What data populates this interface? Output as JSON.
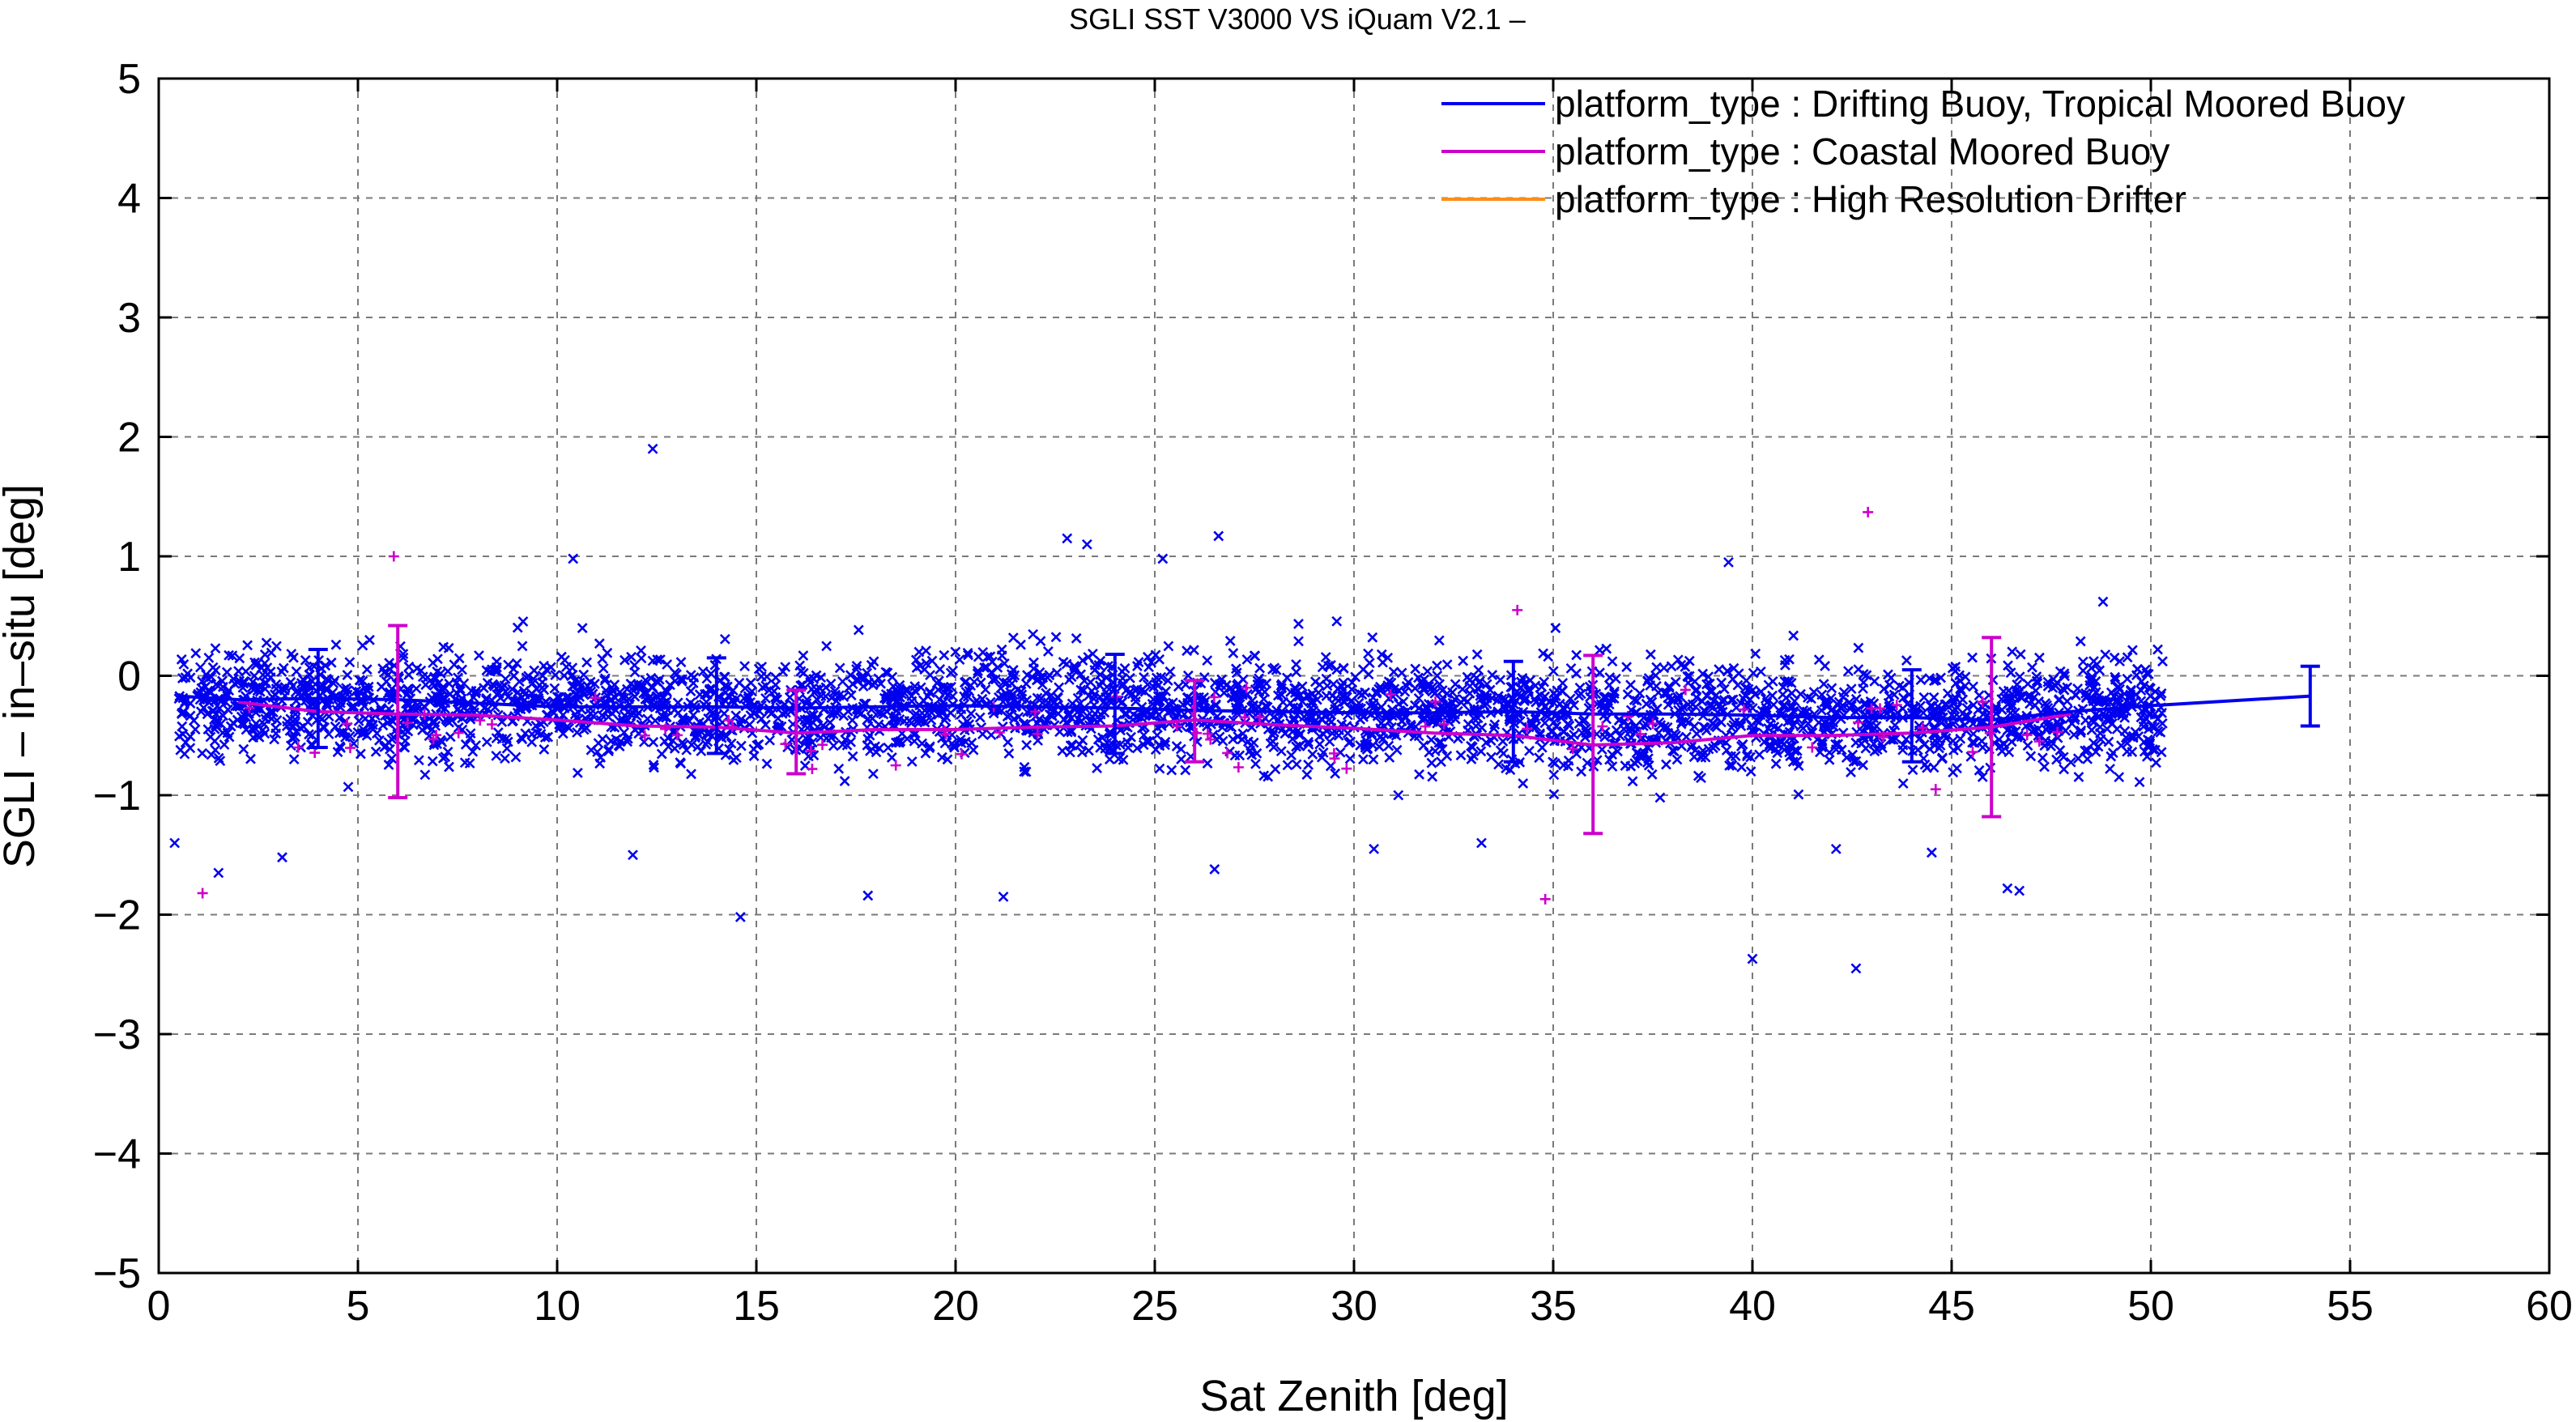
{
  "chart_data": {
    "type": "scatter",
    "title": "SGLI SST V3000 VS iQuam V2.1  –",
    "xlabel": "Sat Zenith [deg]",
    "ylabel": "SGLI – in–situ [deg]",
    "xlim": [
      0,
      60
    ],
    "ylim": [
      -5,
      5
    ],
    "xticks": [
      0,
      5,
      10,
      15,
      20,
      25,
      30,
      35,
      40,
      45,
      50,
      55,
      60
    ],
    "yticks": [
      -5,
      -4,
      -3,
      -2,
      -1,
      0,
      1,
      2,
      3,
      4,
      5
    ],
    "ytick_labels": [
      "−5",
      "−4",
      "−3",
      "−2",
      "−1",
      "0",
      "1",
      "2",
      "3",
      "4",
      "5"
    ],
    "grid": true,
    "legend_position": "top-right",
    "colors": {
      "drifting": "#0000ee",
      "coastal": "#cc00cc",
      "hr": "#ff8c1a"
    },
    "series": [
      {
        "name": "platform_type : Drifting Buoy, Tropical Moored Buoy",
        "color": "#0000ee",
        "scatter_center": [
          [
            0.5,
            -0.2
          ],
          [
            2.5,
            -0.2
          ],
          [
            5,
            -0.25
          ],
          [
            7.5,
            -0.25
          ],
          [
            10,
            -0.25
          ],
          [
            12.5,
            -0.28
          ],
          [
            15,
            -0.28
          ],
          [
            17.5,
            -0.27
          ],
          [
            20,
            -0.25
          ],
          [
            22.5,
            -0.26
          ],
          [
            25,
            -0.27
          ],
          [
            27.5,
            -0.3
          ],
          [
            30,
            -0.3
          ],
          [
            32.5,
            -0.32
          ],
          [
            35,
            -0.32
          ],
          [
            37.5,
            -0.34
          ],
          [
            40,
            -0.35
          ],
          [
            42.5,
            -0.36
          ],
          [
            45,
            -0.36
          ],
          [
            47.5,
            -0.3
          ],
          [
            50.3,
            -0.25
          ]
        ],
        "scatter_spread": 0.38,
        "outliers": [
          [
            12.4,
            1.9
          ],
          [
            14.6,
            -2.02
          ],
          [
            40,
            -2.37
          ],
          [
            42.6,
            -2.45
          ],
          [
            26.6,
            1.17
          ],
          [
            22.8,
            1.15
          ],
          [
            23.3,
            1.1
          ],
          [
            17.8,
            -1.84
          ],
          [
            21.2,
            -1.85
          ],
          [
            3.1,
            -1.52
          ],
          [
            1.5,
            -1.65
          ],
          [
            0.4,
            -1.4
          ],
          [
            11.9,
            -1.5
          ],
          [
            46.4,
            -1.78
          ],
          [
            46.7,
            -1.8
          ],
          [
            48.8,
            0.62
          ],
          [
            39.4,
            0.95
          ],
          [
            10.4,
            0.98
          ],
          [
            25.2,
            0.98
          ],
          [
            26.5,
            -1.62
          ],
          [
            42.1,
            -1.45
          ],
          [
            30.5,
            -1.45
          ],
          [
            33.2,
            -1.4
          ],
          [
            44.5,
            -1.48
          ]
        ],
        "mean_line": {
          "x": [
            0.5,
            2,
            4,
            6,
            8,
            10,
            12,
            14,
            16,
            18,
            20,
            22,
            24,
            26,
            28,
            30,
            32,
            34,
            36,
            38,
            40,
            42,
            44,
            46,
            48,
            50,
            54
          ],
          "y": [
            -0.17,
            -0.2,
            -0.19,
            -0.2,
            -0.23,
            -0.26,
            -0.26,
            -0.26,
            -0.27,
            -0.26,
            -0.25,
            -0.26,
            -0.27,
            -0.29,
            -0.3,
            -0.31,
            -0.31,
            -0.3,
            -0.32,
            -0.32,
            -0.33,
            -0.35,
            -0.35,
            -0.37,
            -0.3,
            -0.25,
            -0.17
          ]
        },
        "error_bars": [
          {
            "x": 4,
            "mean": -0.2,
            "low": -0.6,
            "high": 0.22
          },
          {
            "x": 14,
            "mean": -0.25,
            "low": -0.65,
            "high": 0.15
          },
          {
            "x": 24,
            "mean": -0.27,
            "low": -0.65,
            "high": 0.18
          },
          {
            "x": 34,
            "mean": -0.3,
            "low": -0.72,
            "high": 0.12
          },
          {
            "x": 44,
            "mean": -0.36,
            "low": -0.72,
            "high": 0.05
          },
          {
            "x": 54,
            "mean": -0.17,
            "low": -0.42,
            "high": 0.08
          }
        ]
      },
      {
        "name": "platform_type : Coastal Moored Buoy",
        "color": "#cc00cc",
        "points": [
          [
            1.1,
            -1.82
          ],
          [
            5.9,
            1.0
          ],
          [
            34.8,
            -1.87
          ],
          [
            42.9,
            1.37
          ],
          [
            34.1,
            0.55
          ],
          [
            16.4,
            -0.78
          ],
          [
            18.5,
            -0.75
          ],
          [
            44.6,
            -0.95
          ],
          [
            29.5,
            -0.65
          ],
          [
            3.5,
            -0.6
          ],
          [
            47.2,
            -0.55
          ],
          [
            41.5,
            -0.6
          ],
          [
            37.5,
            -0.4
          ],
          [
            27.3,
            -0.1
          ],
          [
            12.2,
            -0.5
          ],
          [
            22.0,
            -0.3
          ]
        ],
        "mean_line": {
          "x": [
            2,
            4,
            6,
            8,
            10,
            12,
            14,
            16,
            18,
            20,
            22,
            24,
            26,
            28,
            30,
            32,
            34,
            36,
            38,
            40,
            42,
            44,
            46,
            48
          ],
          "y": [
            -0.22,
            -0.3,
            -0.32,
            -0.33,
            -0.37,
            -0.42,
            -0.43,
            -0.48,
            -0.45,
            -0.45,
            -0.43,
            -0.42,
            -0.37,
            -0.41,
            -0.44,
            -0.48,
            -0.5,
            -0.58,
            -0.56,
            -0.5,
            -0.5,
            -0.48,
            -0.43,
            -0.32
          ]
        },
        "error_bars": [
          {
            "x": 6,
            "mean": -0.3,
            "low": -1.02,
            "high": 0.42
          },
          {
            "x": 16,
            "mean": -0.47,
            "low": -0.82,
            "high": -0.12
          },
          {
            "x": 26,
            "mean": -0.38,
            "low": -0.72,
            "high": -0.04
          },
          {
            "x": 36,
            "mean": -0.57,
            "low": -1.32,
            "high": 0.17
          },
          {
            "x": 46,
            "mean": -0.43,
            "low": -1.18,
            "high": 0.32
          }
        ]
      },
      {
        "name": "platform_type : High Resolution Drifter",
        "color": "#ff8c1a",
        "points": []
      }
    ]
  }
}
